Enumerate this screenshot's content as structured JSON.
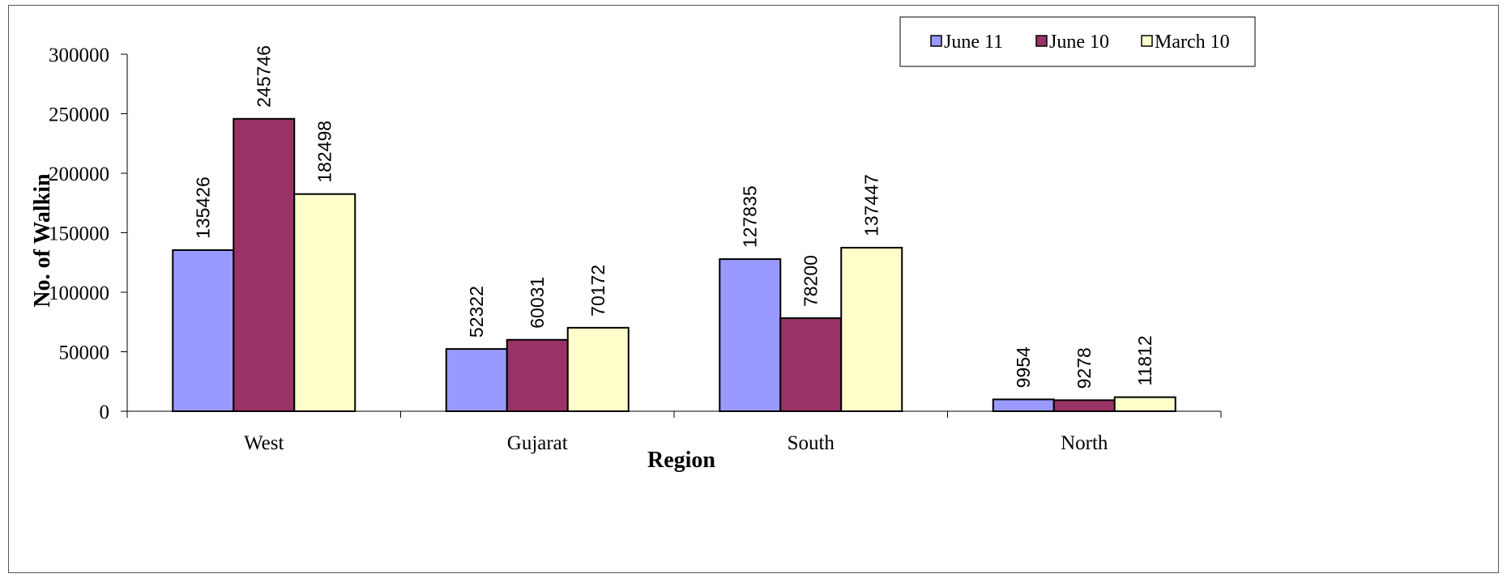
{
  "chart_data": {
    "type": "bar",
    "title": "",
    "xlabel": "Region",
    "ylabel": "No. of Walkin",
    "categories": [
      "West",
      "Gujarat",
      "South",
      "North"
    ],
    "series": [
      {
        "name": "June 11",
        "color": "#9999ff",
        "values": [
          135426,
          52322,
          127835,
          9954
        ]
      },
      {
        "name": "June 10",
        "color": "#993366",
        "values": [
          245746,
          60031,
          78200,
          9278
        ]
      },
      {
        "name": "March 10",
        "color": "#ffffcc",
        "values": [
          182498,
          70172,
          137447,
          11812
        ]
      }
    ],
    "ylim": [
      0,
      300000
    ],
    "yticks": [
      "0",
      "50000",
      "100000",
      "150000",
      "200000",
      "250000",
      "300000"
    ],
    "grid": false,
    "legend_position": "top-right",
    "data_labels": true
  }
}
